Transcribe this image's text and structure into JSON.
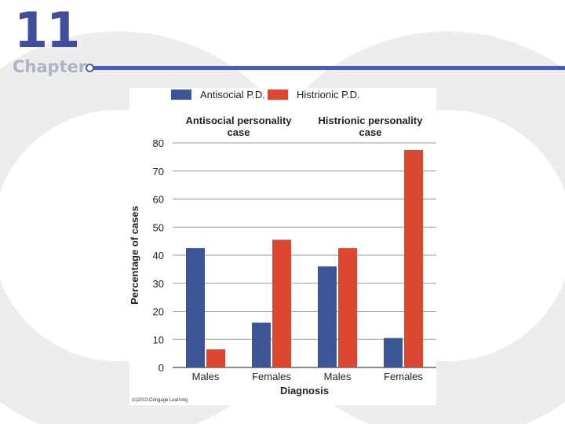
{
  "header": {
    "chapter_number": "11",
    "chapter_word": "Chapter"
  },
  "colors": {
    "accent": "#3f4f9e",
    "antisocial": "#3d5597",
    "histrionic": "#db4731"
  },
  "chart_data": {
    "type": "bar",
    "groups": [
      {
        "title": "Antisocial personality case",
        "categories": [
          "Males",
          "Females"
        ]
      },
      {
        "title": "Histrionic personality case",
        "categories": [
          "Males",
          "Females"
        ]
      }
    ],
    "categories": [
      "Males",
      "Females",
      "Males",
      "Females"
    ],
    "series": [
      {
        "name": "Antisocial P.D.",
        "color": "#3d5597",
        "values": [
          42.5,
          16,
          36,
          10.5
        ]
      },
      {
        "name": "Histrionic P.D.",
        "color": "#db4731",
        "values": [
          6.5,
          45.5,
          42.5,
          77.5
        ]
      }
    ],
    "xlabel": "Diagnosis",
    "ylabel": "Percentage of cases",
    "ylim": [
      0,
      80
    ],
    "yticks": [
      0,
      10,
      20,
      30,
      40,
      50,
      60,
      70,
      80
    ],
    "grid": true,
    "legend": "top",
    "credit": "(c)2013 Cengage Learning"
  }
}
